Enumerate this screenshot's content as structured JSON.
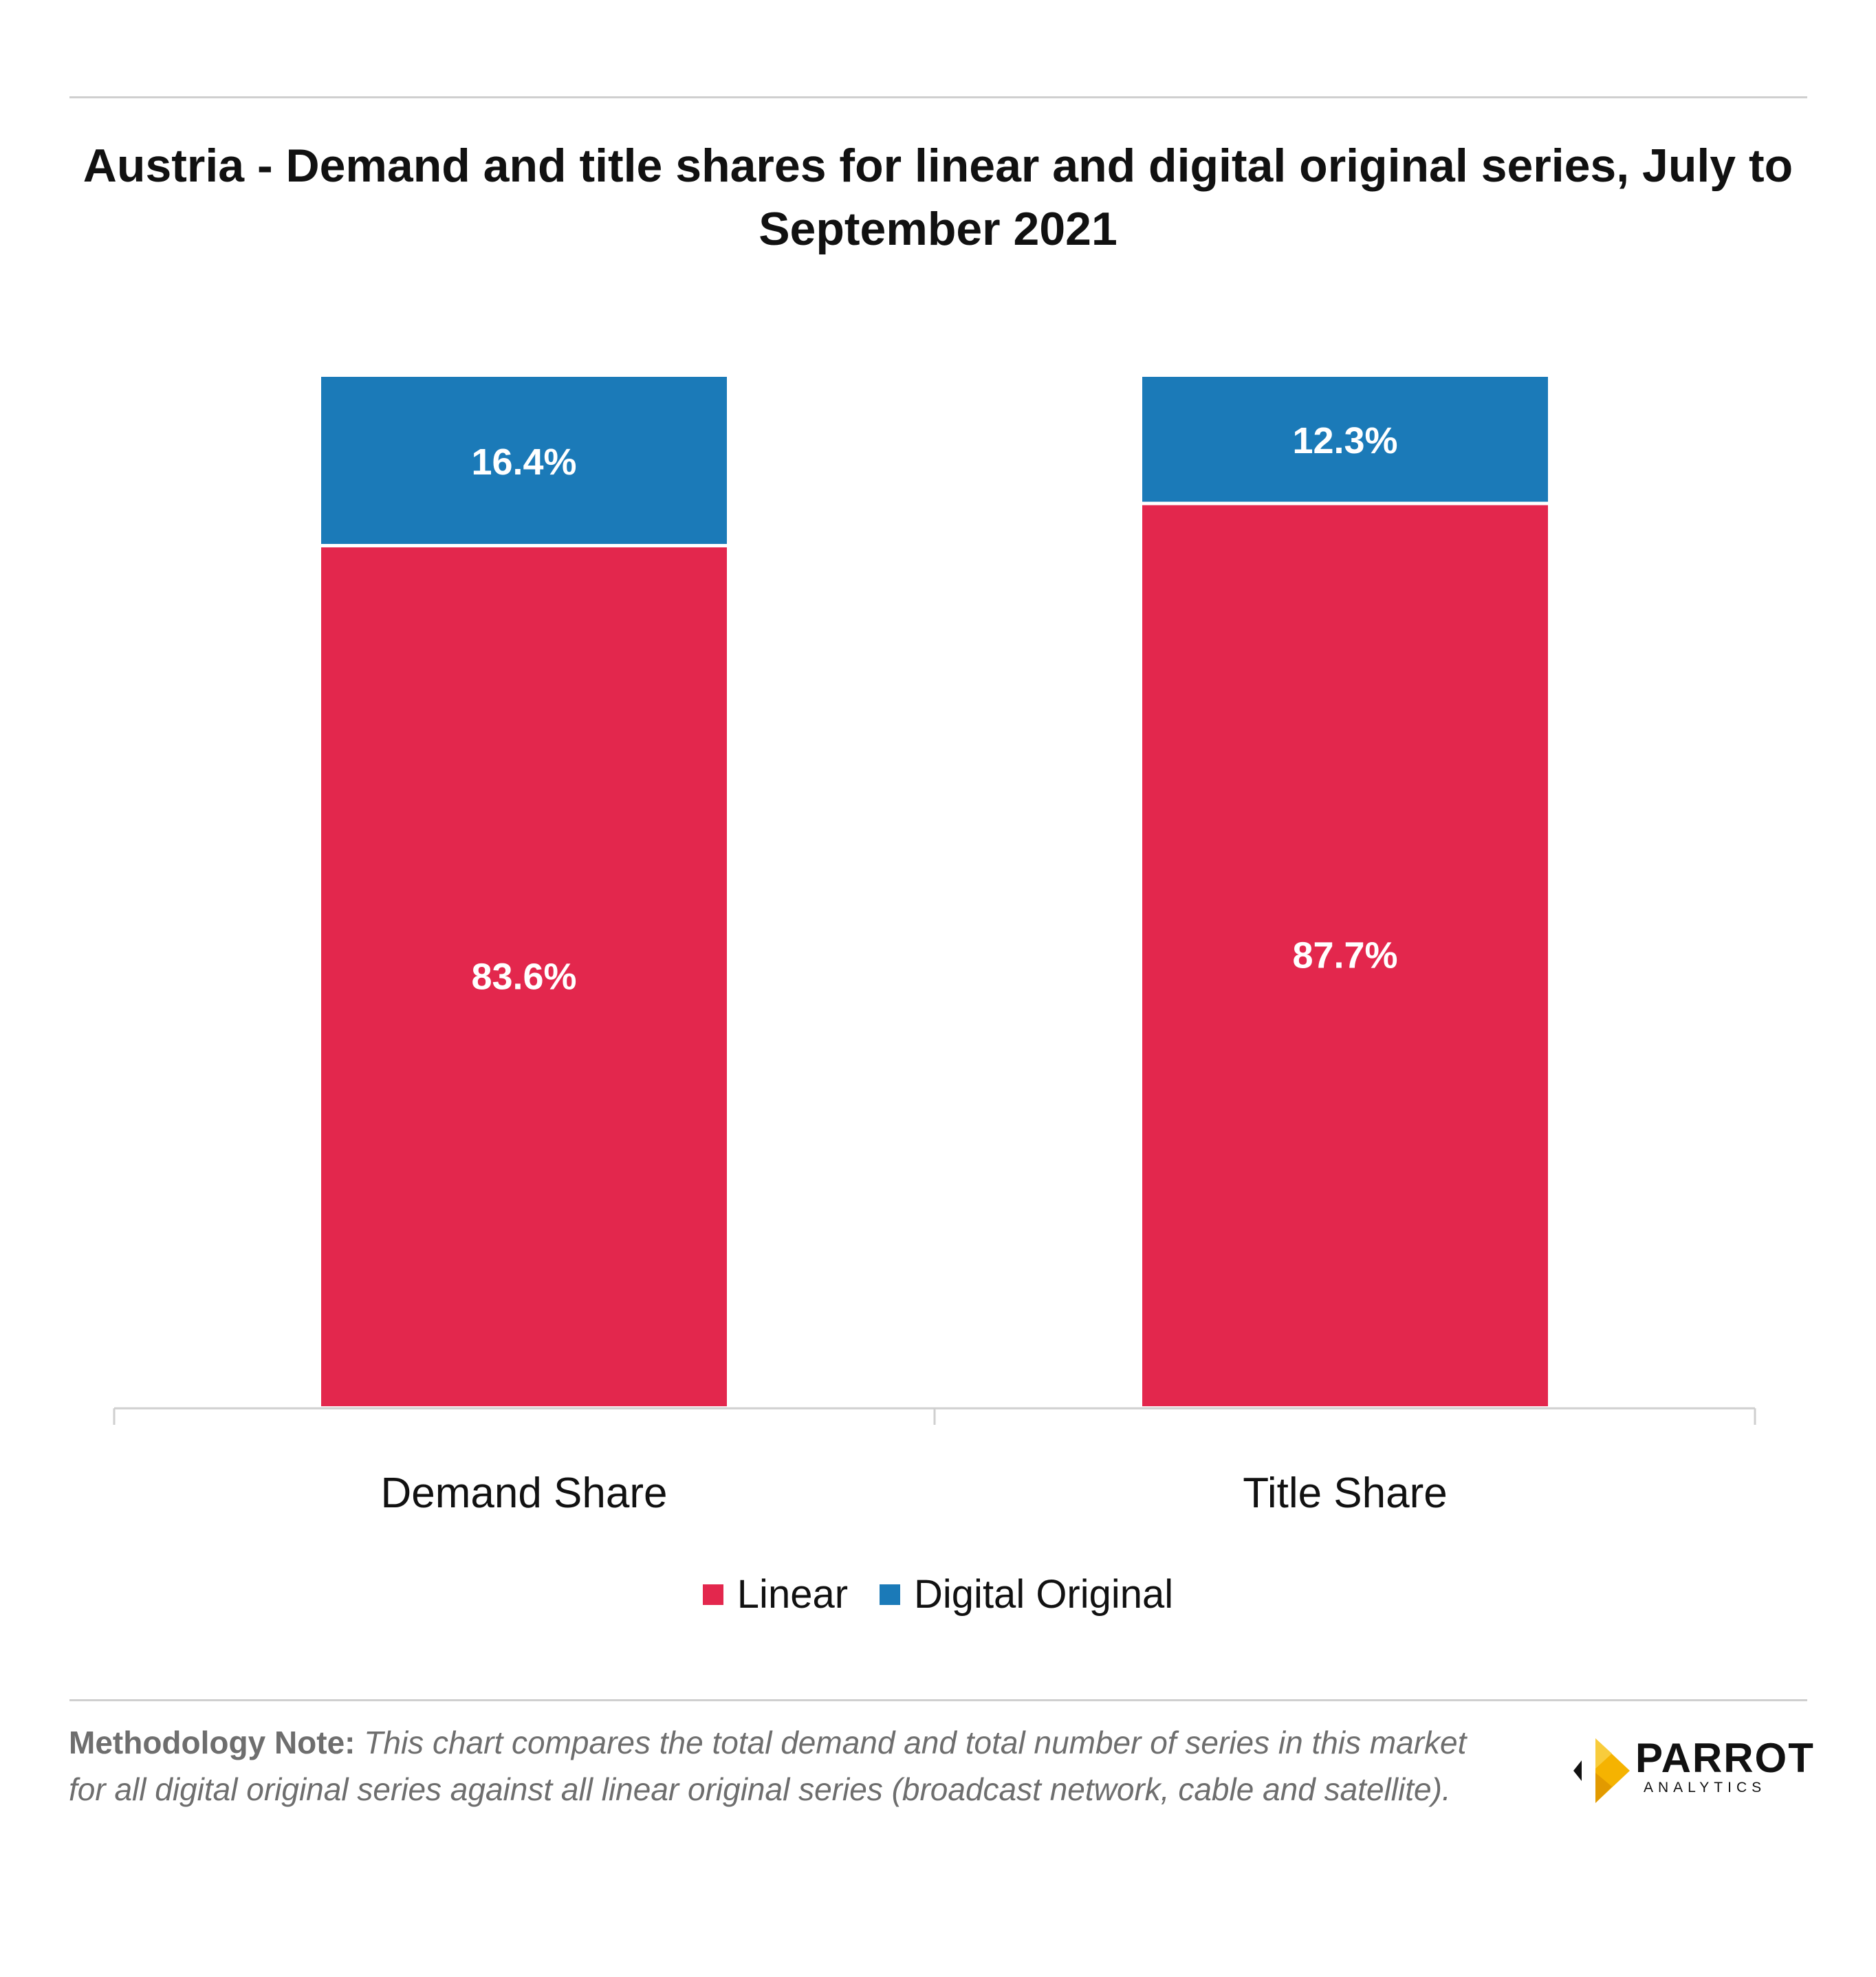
{
  "chart_data": {
    "type": "bar",
    "stacked": true,
    "title": "Austria - Demand and title shares for linear and digital original series, July to September 2021",
    "categories": [
      "Demand Share",
      "Title Share"
    ],
    "series": [
      {
        "name": "Linear",
        "values": [
          83.6,
          87.7
        ],
        "color": "#e3274d"
      },
      {
        "name": "Digital Original",
        "values": [
          16.4,
          12.3
        ],
        "color": "#1b7ab8"
      }
    ],
    "data_labels": {
      "Linear": [
        "83.6%",
        "87.7%"
      ],
      "Digital Original": [
        "16.4%",
        "12.3%"
      ]
    },
    "ylim": [
      0,
      100
    ],
    "grid": false,
    "legend_position": "bottom"
  },
  "legend": {
    "items": [
      {
        "label": "Linear",
        "color": "#e3274d"
      },
      {
        "label": "Digital Original",
        "color": "#1b7ab8"
      }
    ]
  },
  "footer": {
    "note_label": "Methodology Note:",
    "note_text": "This chart compares the total demand and total number of series in this market for all digital original series against all linear original series (broadcast network, cable and satellite).",
    "logo_name": "PARROT",
    "logo_sub": "ANALYTICS",
    "logo_icon": "parrot-analytics-logo-icon"
  }
}
